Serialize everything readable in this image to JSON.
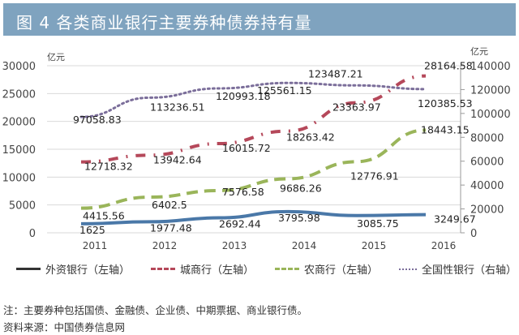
{
  "title": "图 4  各类商业银行主要券种债券持有量",
  "note": "注：主要券种包括国债、金融债、企业债、中期票据、商业银行债。",
  "source": "资料来源：中国债券信息网",
  "chart_data": {
    "type": "line",
    "categories": [
      "2011",
      "2012",
      "2013",
      "2014",
      "2015",
      "2016"
    ],
    "left_axis": {
      "unit": "亿元",
      "range": [
        0,
        30000
      ],
      "ticks": [
        "0",
        "5000",
        "10000",
        "15000",
        "20000",
        "25000",
        "30000"
      ]
    },
    "right_axis": {
      "unit": "亿元",
      "range": [
        0,
        140000
      ],
      "ticks": [
        "0",
        "20000",
        "40000",
        "60000",
        "80000",
        "100000",
        "120000",
        "140000"
      ]
    },
    "grid": true,
    "legend_position": "bottom",
    "series": [
      {
        "name": "外资银行（左轴）",
        "axis": "left",
        "style": "solid",
        "color": "#4a78a8",
        "legend_color": "#333333",
        "values": [
          1625,
          1977.48,
          2692.44,
          3795.98,
          3085.75,
          3249.67
        ],
        "labels": [
          "1625",
          "1977.48",
          "2692.44",
          "3795.98",
          "3085.75",
          "3249.67"
        ]
      },
      {
        "name": "城商行（左轴）",
        "axis": "left",
        "style": "dash-dot",
        "color": "#b5485a",
        "values": [
          12718.32,
          13942.64,
          16015.72,
          18263.42,
          23363.97,
          28164.58
        ],
        "labels": [
          "12718.32",
          "13942.64",
          "16015.72",
          "18263.42",
          "23363.97",
          "28164.58"
        ]
      },
      {
        "name": "农商行（左轴）",
        "axis": "left",
        "style": "dashed",
        "color": "#9ab55a",
        "values": [
          4415.56,
          6402.5,
          7576.58,
          9686.26,
          12776.91,
          18443.15
        ],
        "labels": [
          "4415.56",
          "6402.5",
          "7576.58",
          "9686.26",
          "12776.91",
          "18443.15"
        ]
      },
      {
        "name": "全国性银行（右轴）",
        "axis": "right",
        "style": "dotted",
        "color": "#7b6e9a",
        "values": [
          97058.83,
          113236.51,
          120993.18,
          125561.15,
          123487.21,
          120385.53
        ],
        "labels": [
          "97058.83",
          "113236.51",
          "120993.18",
          "125561.15",
          "123487.21",
          "120385.53"
        ]
      }
    ]
  }
}
